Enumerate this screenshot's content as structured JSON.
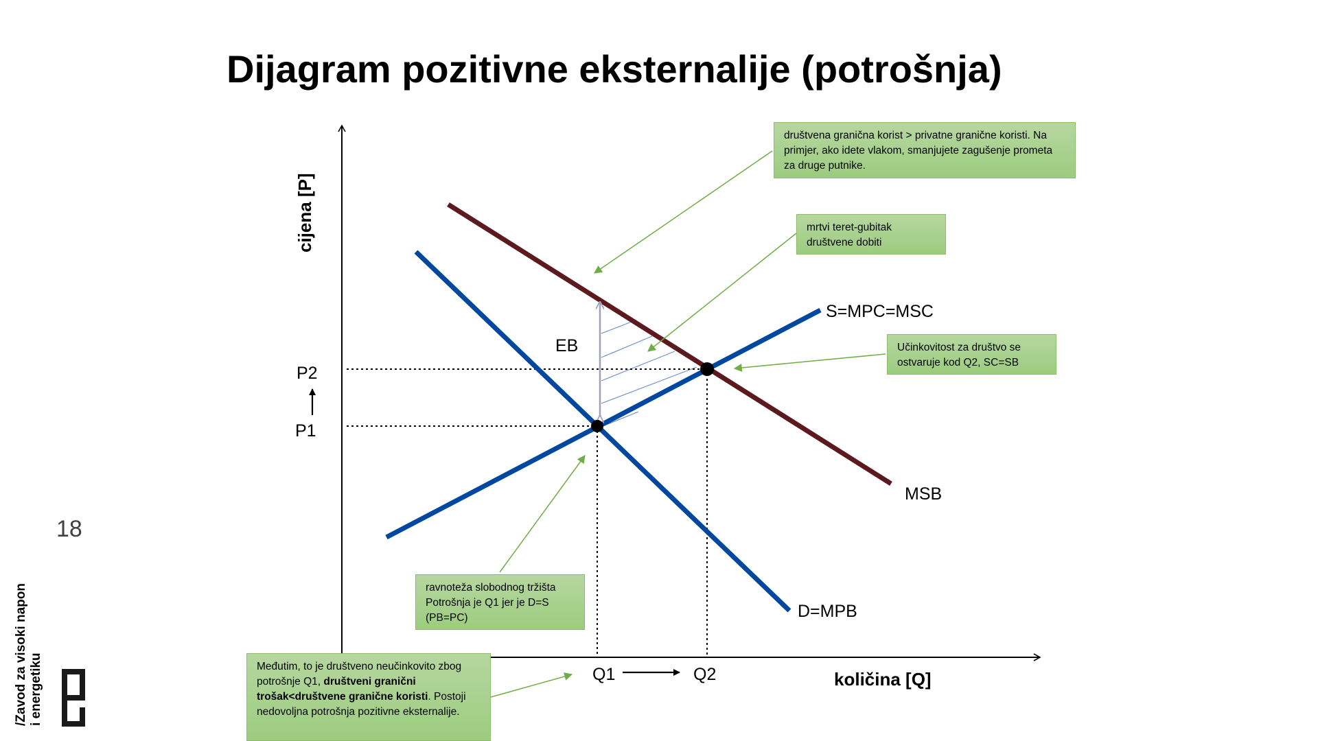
{
  "title": "Dijagram pozitivne eksternalije (potrošnja)",
  "page_number": "18",
  "organization": {
    "line1": "/Zavod za visoki napon",
    "line2": "i energetiku",
    "logo": "fer-logo"
  },
  "axes": {
    "y_title": "cijena [P]",
    "x_title": "količina [Q]"
  },
  "labels": {
    "p1": "P1",
    "p2": "P2",
    "q1": "Q1",
    "q2": "Q2",
    "eb": "EB",
    "supply": "S=MPC=MSC",
    "demand": "D=MPB",
    "msb": "MSB"
  },
  "notes": {
    "social_benefit": "društvena granična korist > privatne granične koristi. Na primjer, ako idete vlakom, smanjujete zagušenje prometa za druge putnike.",
    "deadweight": "mrtvi teret-gubitak društvene dobiti",
    "efficiency": "Učinkovitost za društvo se ostvaruje kod Q2, SC=SB",
    "market_eq": "ravnoteža slobodnog tržišta Potrošnja je Q1 jer je D=S (PB=PC)",
    "however_pre": "Međutim, to je društveno neučinkovito zbog potrošnje Q1, ",
    "however_bold": "društveni granični trošak<društvene granične koristi",
    "however_post": ". Postoji nedovoljna potrošnja pozitivne eksternalije."
  },
  "colors": {
    "supply_demand": "#0047a0",
    "msb": "#5c1a1e",
    "note_fill": "#a9d18e",
    "callout": "#70ad47"
  }
}
